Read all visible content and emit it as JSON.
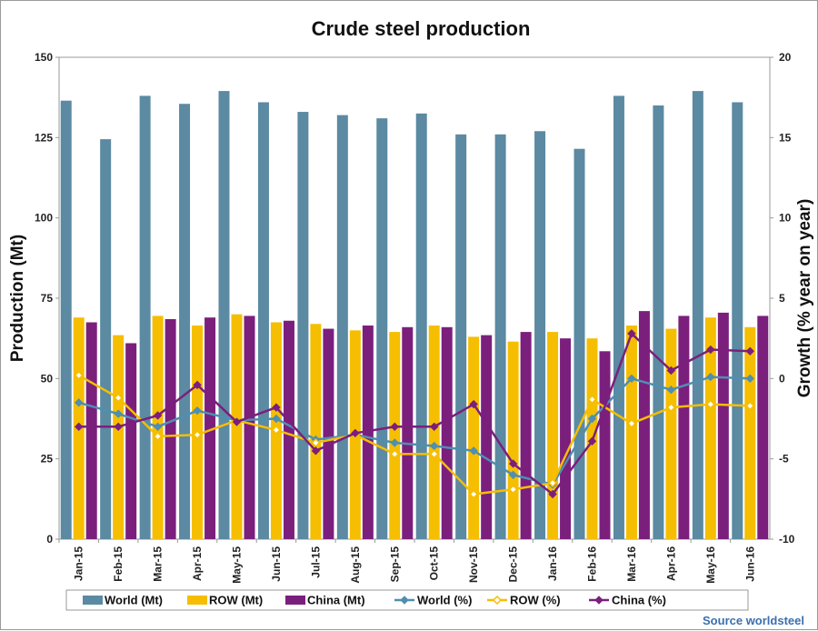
{
  "chart_data": {
    "type": "bar",
    "title": "Crude steel production",
    "source": "Source worldsteel",
    "categories": [
      "Jan-15",
      "Feb-15",
      "Mar-15",
      "Apr-15",
      "May-15",
      "Jun-15",
      "Jul-15",
      "Aug-15",
      "Sep-15",
      "Oct-15",
      "Nov-15",
      "Dec-15",
      "Jan-16",
      "Feb-16",
      "Mar-16",
      "Apr-16",
      "May-16",
      "Jun-16"
    ],
    "ylabel_left": "Production (Mt)",
    "ylabel_right": "Growth (% year on year)",
    "ylim_left": [
      0,
      150
    ],
    "yticks_left": [
      0,
      25,
      50,
      75,
      100,
      125,
      150
    ],
    "ylim_right": [
      -10,
      20
    ],
    "yticks_right": [
      -10,
      -5,
      0,
      5,
      10,
      15,
      20
    ],
    "grid": false,
    "legend_position": "bottom",
    "bar_series": [
      {
        "name": "World (Mt)",
        "color": "#5b8aa2",
        "values": [
          136.5,
          124.5,
          138,
          135.5,
          139.5,
          136,
          133,
          132,
          131,
          132.5,
          126,
          126,
          127,
          121.5,
          138,
          135,
          139.5,
          136
        ]
      },
      {
        "name": "ROW (Mt)",
        "color": "#f6be00",
        "values": [
          69,
          63.5,
          69.5,
          66.5,
          70,
          67.5,
          67,
          65,
          64.5,
          66.5,
          63,
          61.5,
          64.5,
          62.5,
          66.5,
          65.5,
          69,
          66
        ]
      },
      {
        "name": "China (Mt)",
        "color": "#7b1f7d",
        "values": [
          67.5,
          61,
          68.5,
          69,
          69.5,
          68,
          65.5,
          66.5,
          66,
          66,
          63.5,
          64.5,
          62.5,
          58.5,
          71,
          69.5,
          70.5,
          69.5
        ]
      }
    ],
    "line_series": [
      {
        "name": "World (%)",
        "color": "#4f8fb0",
        "marker": "diamond",
        "values": [
          -1.5,
          -2.2,
          -3,
          -2,
          -2.6,
          -2.5,
          -3.8,
          -3.5,
          -4,
          -4.2,
          -4.5,
          -6,
          -6.6,
          -2.5,
          0,
          -0.7,
          0.1,
          0
        ]
      },
      {
        "name": "ROW (%)",
        "color": "#f6be00",
        "marker": "diamond-open",
        "values": [
          0.2,
          -1.2,
          -3.6,
          -3.5,
          -2.6,
          -3.2,
          -4,
          -3.5,
          -4.7,
          -4.7,
          -7.2,
          -6.9,
          -6.5,
          -1.3,
          -2.8,
          -1.8,
          -1.6,
          -1.7
        ]
      },
      {
        "name": "China (%)",
        "color": "#7b1f7d",
        "marker": "diamond",
        "values": [
          -3,
          -3,
          -2.3,
          -0.4,
          -2.7,
          -1.8,
          -4.5,
          -3.4,
          -3,
          -3,
          -1.6,
          -5.3,
          -7.2,
          -3.9,
          2.8,
          0.5,
          1.8,
          1.7
        ]
      }
    ]
  }
}
